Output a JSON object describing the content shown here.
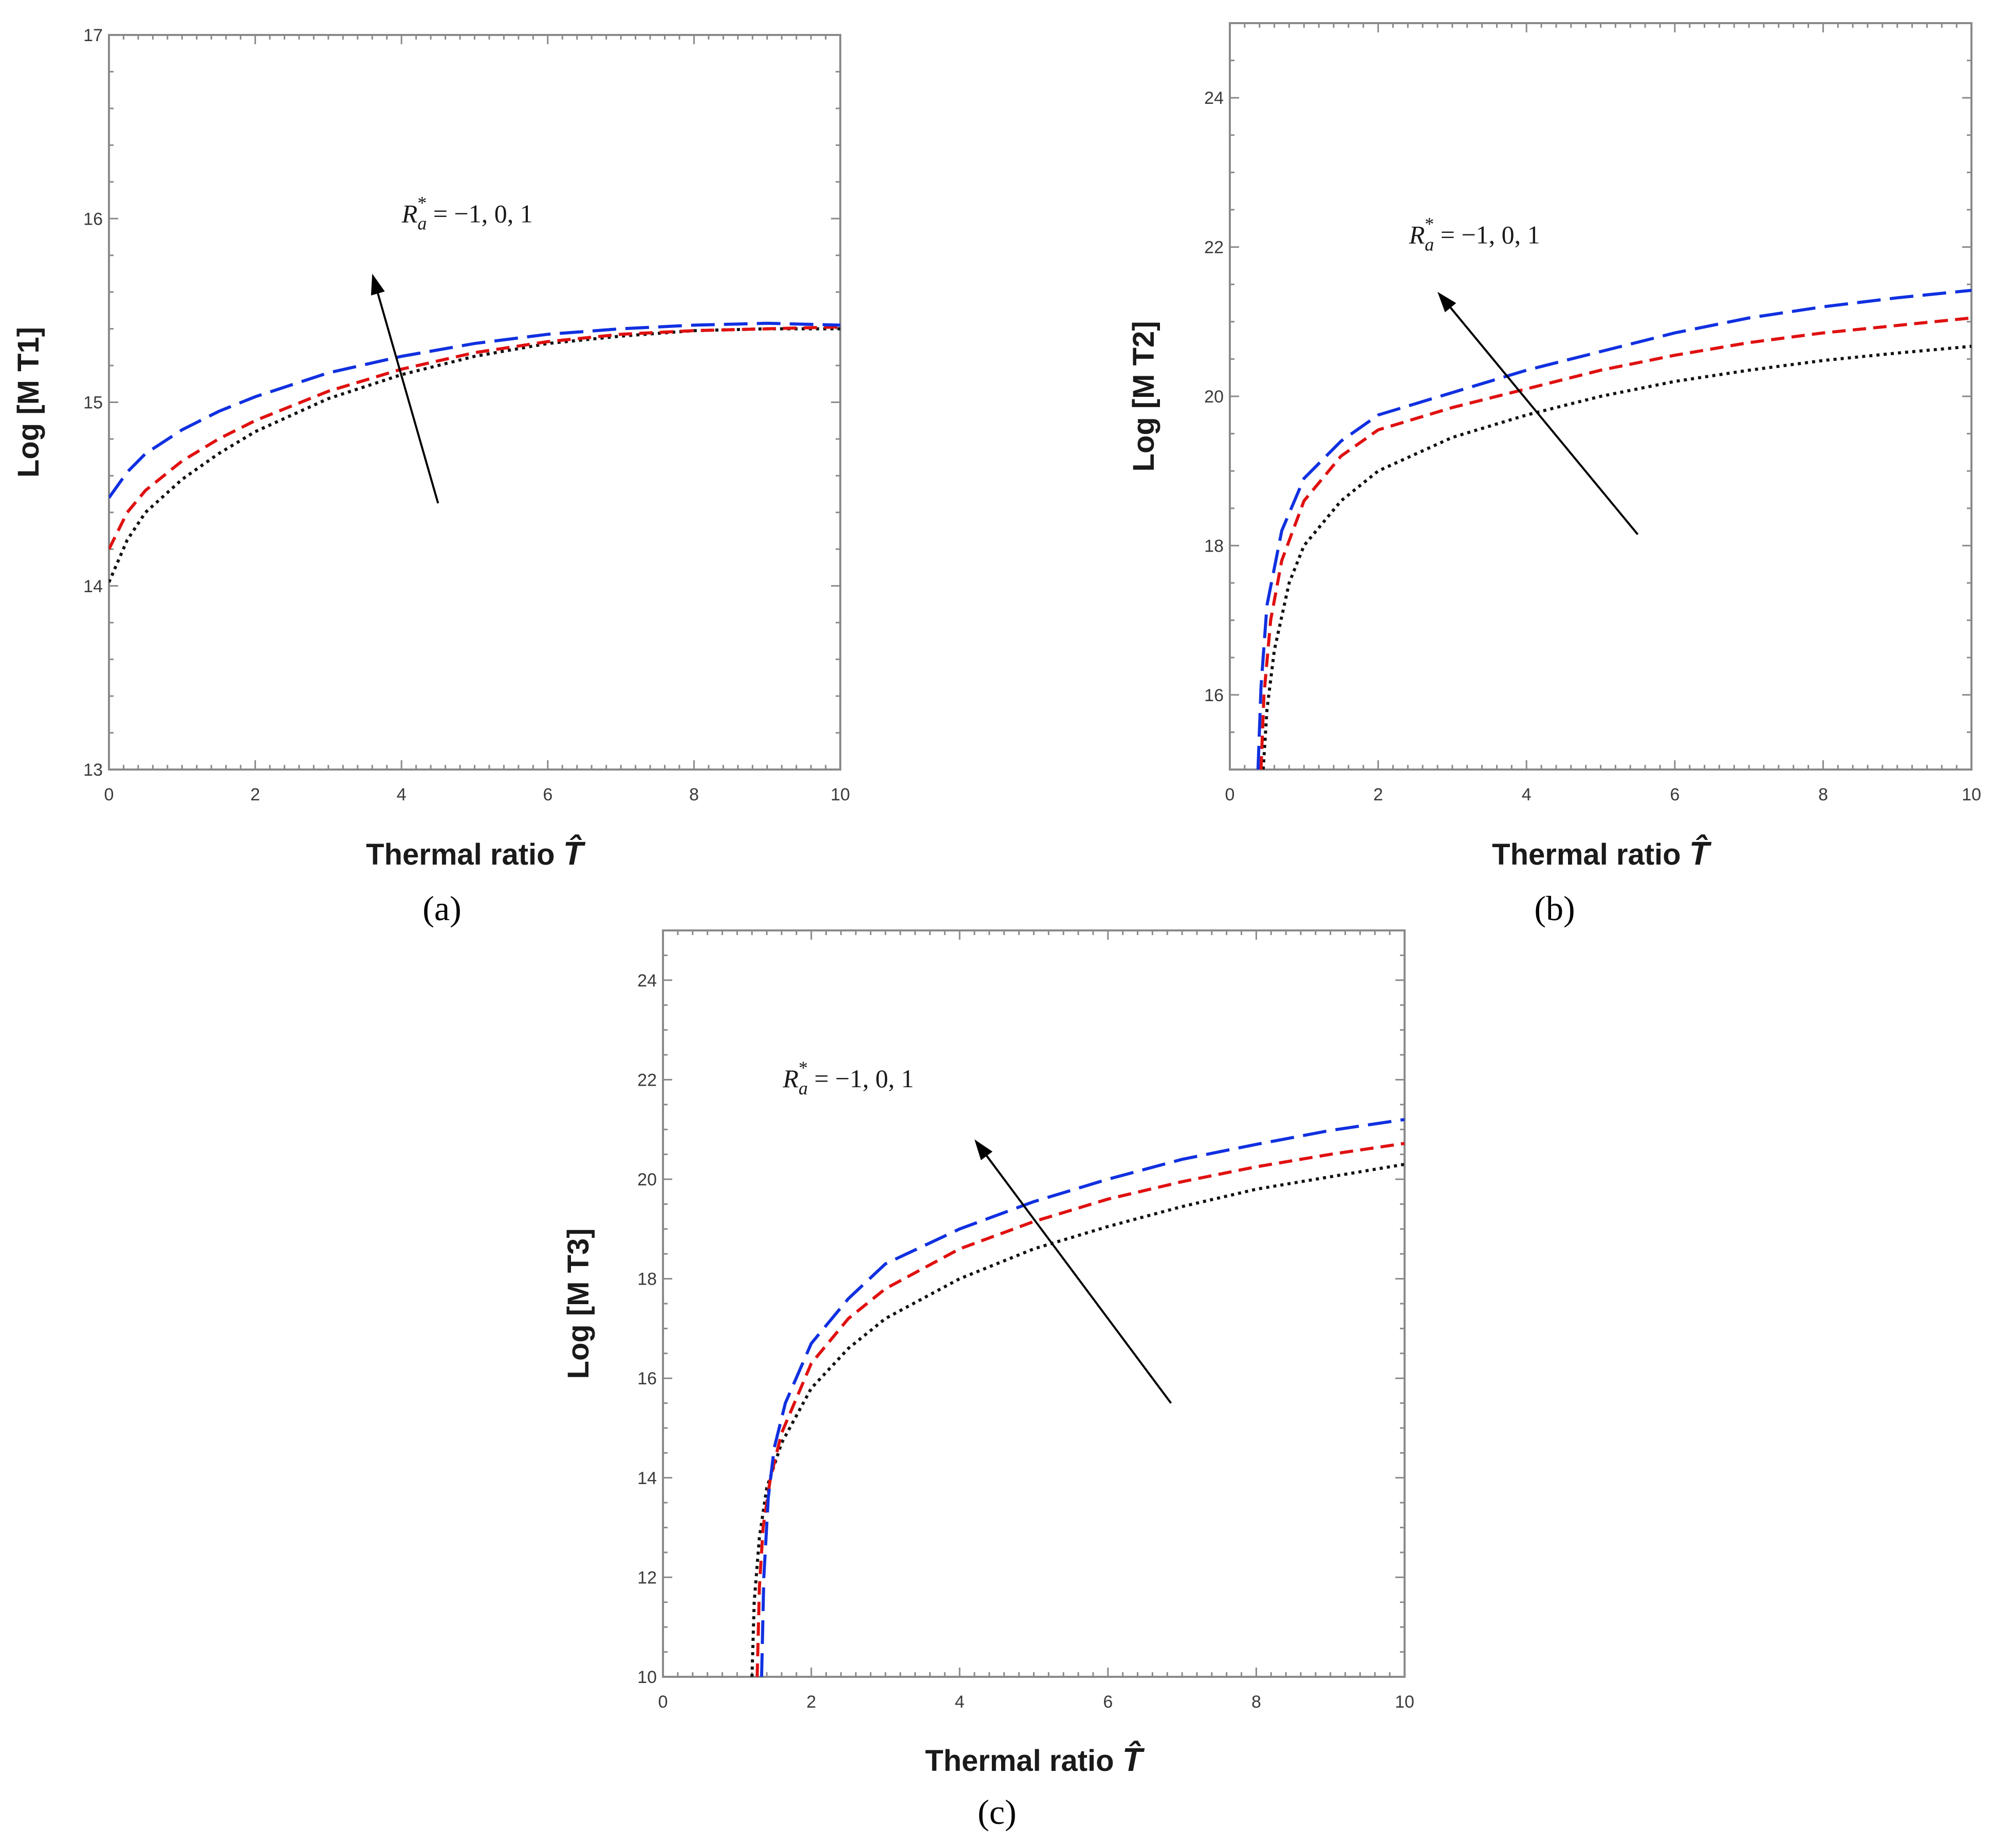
{
  "colors": {
    "R_minus1": "#111111",
    "R_0": "#e01010",
    "R_1": "#1030e0"
  },
  "chart_data": [
    {
      "type": "line",
      "panel": "a",
      "sublabel": "(a)",
      "xlabel": "Thermal ratio",
      "xlabel_symbol": "T̂",
      "ylabel": "Log [M T1]",
      "xlim": [
        0,
        10
      ],
      "ylim": [
        13,
        17
      ],
      "xticks": [
        0,
        2,
        4,
        6,
        8,
        10
      ],
      "yticks": [
        13,
        14,
        15,
        16,
        17
      ],
      "annotation": {
        "text_R": "R",
        "text_sub": "a",
        "text_sup": "*",
        "text_vals": " = −1, 0, 1",
        "label_x": 4.9,
        "label_y": 15.98,
        "arrow_from": [
          4.5,
          14.45
        ],
        "arrow_to": [
          3.6,
          15.7
        ]
      },
      "series": [
        {
          "name": "R_a* = -1",
          "style": "dotted",
          "x": [
            0,
            0.25,
            0.5,
            1,
            1.5,
            2,
            3,
            4,
            5,
            6,
            7,
            8,
            9,
            10
          ],
          "y": [
            14.02,
            14.25,
            14.4,
            14.58,
            14.72,
            14.84,
            15.02,
            15.15,
            15.25,
            15.32,
            15.36,
            15.39,
            15.4,
            15.4
          ]
        },
        {
          "name": "R_a* = 0",
          "style": "dashed",
          "x": [
            0,
            0.25,
            0.5,
            1,
            1.5,
            2,
            3,
            4,
            5,
            6,
            7,
            8,
            9,
            10
          ],
          "y": [
            14.2,
            14.4,
            14.52,
            14.68,
            14.8,
            14.9,
            15.06,
            15.18,
            15.27,
            15.33,
            15.37,
            15.39,
            15.4,
            15.41
          ]
        },
        {
          "name": "R_a* = 1",
          "style": "longdash",
          "x": [
            0,
            0.25,
            0.5,
            1,
            1.5,
            2,
            3,
            4,
            5,
            6,
            7,
            8,
            9,
            10
          ],
          "y": [
            14.48,
            14.62,
            14.72,
            14.85,
            14.95,
            15.03,
            15.16,
            15.25,
            15.32,
            15.37,
            15.4,
            15.42,
            15.43,
            15.42
          ]
        }
      ]
    },
    {
      "type": "line",
      "panel": "b",
      "sublabel": "(b)",
      "xlabel": "Thermal ratio",
      "xlabel_symbol": "T̂",
      "ylabel": "Log [M T2]",
      "xlim": [
        0,
        10
      ],
      "ylim": [
        15,
        25
      ],
      "xticks": [
        0,
        2,
        4,
        6,
        8,
        10
      ],
      "yticks": [
        16,
        18,
        20,
        22,
        24
      ],
      "annotation": {
        "text_R": "R",
        "text_sub": "a",
        "text_sup": "*",
        "text_vals": " = −1, 0, 1",
        "label_x": 3.3,
        "label_y": 22.05,
        "arrow_from": [
          5.5,
          18.15
        ],
        "arrow_to": [
          2.8,
          21.4
        ]
      },
      "series": [
        {
          "name": "R_a* = -1",
          "style": "dotted",
          "x": [
            0.45,
            0.5,
            0.6,
            0.8,
            1,
            1.5,
            2,
            3,
            4,
            5,
            6,
            7,
            8,
            9,
            10
          ],
          "y": [
            15.0,
            15.8,
            16.6,
            17.5,
            18.0,
            18.6,
            19.0,
            19.45,
            19.75,
            20.0,
            20.2,
            20.35,
            20.48,
            20.58,
            20.67
          ]
        },
        {
          "name": "R_a* = 0",
          "style": "dashed",
          "x": [
            0.42,
            0.46,
            0.55,
            0.7,
            1,
            1.5,
            2,
            3,
            4,
            5,
            6,
            7,
            8,
            9,
            10
          ],
          "y": [
            15.0,
            16.0,
            17.0,
            17.8,
            18.6,
            19.2,
            19.55,
            19.85,
            20.1,
            20.35,
            20.55,
            20.72,
            20.85,
            20.95,
            21.05
          ]
        },
        {
          "name": "R_a* = 1",
          "style": "longdash",
          "x": [
            0.38,
            0.42,
            0.5,
            0.7,
            1,
            1.5,
            2,
            3,
            4,
            5,
            6,
            7,
            8,
            9,
            10
          ],
          "y": [
            15.0,
            16.1,
            17.2,
            18.2,
            18.9,
            19.4,
            19.75,
            20.05,
            20.35,
            20.6,
            20.85,
            21.05,
            21.2,
            21.32,
            21.42
          ]
        }
      ]
    },
    {
      "type": "line",
      "panel": "c",
      "sublabel": "(c)",
      "xlabel": "Thermal ratio",
      "xlabel_symbol": "T̂",
      "ylabel": "Log [M T3]",
      "xlim": [
        0,
        10
      ],
      "ylim": [
        10,
        25
      ],
      "xticks": [
        0,
        2,
        4,
        6,
        8,
        10
      ],
      "yticks": [
        10,
        12,
        14,
        16,
        18,
        20,
        22,
        24
      ],
      "annotation": {
        "text_R": "R",
        "text_sub": "a",
        "text_sup": "*",
        "text_vals": " = −1, 0, 1",
        "label_x": 2.5,
        "label_y": 21.85,
        "arrow_from": [
          6.85,
          15.5
        ],
        "arrow_to": [
          4.2,
          20.8
        ]
      },
      "series": [
        {
          "name": "R_a* = -1",
          "style": "dotted",
          "x": [
            1.2,
            1.23,
            1.3,
            1.4,
            1.6,
            2,
            2.5,
            3,
            4,
            5,
            6,
            7,
            8,
            9,
            10
          ],
          "y": [
            10.0,
            11.5,
            12.8,
            13.8,
            14.7,
            15.8,
            16.6,
            17.2,
            18.0,
            18.6,
            19.05,
            19.45,
            19.8,
            20.05,
            20.3
          ]
        },
        {
          "name": "R_a* = 0",
          "style": "dashed",
          "x": [
            1.27,
            1.3,
            1.35,
            1.45,
            1.6,
            2,
            2.5,
            3,
            4,
            5,
            6,
            7,
            8,
            9,
            10
          ],
          "y": [
            10.0,
            11.8,
            13.0,
            14.0,
            14.9,
            16.3,
            17.2,
            17.8,
            18.6,
            19.15,
            19.6,
            19.95,
            20.25,
            20.5,
            20.72
          ]
        },
        {
          "name": "R_a* = 1",
          "style": "longdash",
          "x": [
            1.33,
            1.36,
            1.42,
            1.5,
            1.65,
            2,
            2.5,
            3,
            4,
            5,
            6,
            7,
            8,
            9,
            10
          ],
          "y": [
            10.0,
            12.0,
            13.6,
            14.6,
            15.5,
            16.7,
            17.6,
            18.3,
            19.0,
            19.55,
            20.0,
            20.4,
            20.7,
            20.98,
            21.2
          ]
        }
      ]
    }
  ]
}
